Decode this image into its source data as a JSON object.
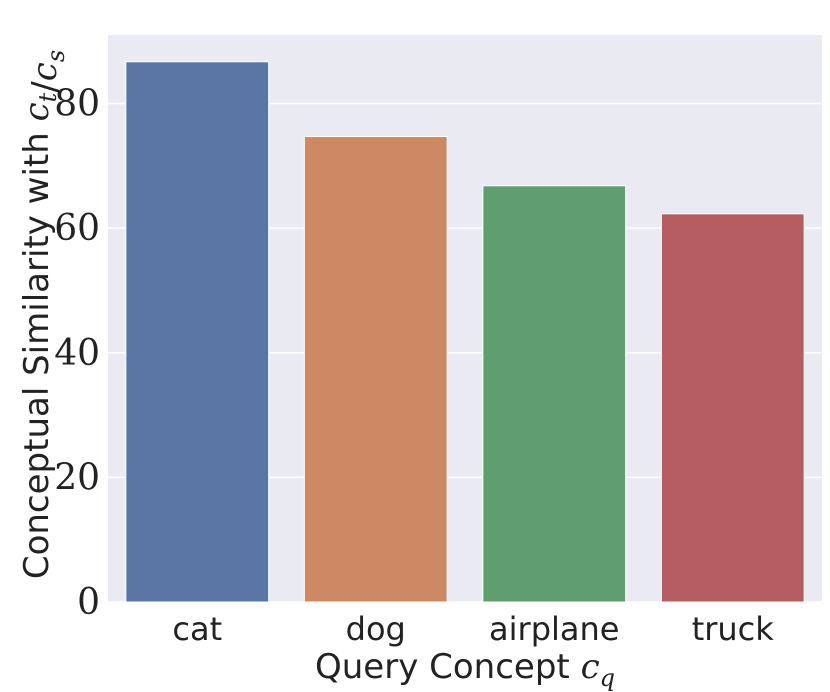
{
  "chart_data": {
    "type": "bar",
    "categories": [
      "cat",
      "dog",
      "airplane",
      "truck"
    ],
    "values": [
      86.7,
      74.7,
      66.8,
      62.3
    ],
    "colors": [
      "#5975a4",
      "#cc8963",
      "#5f9e6e",
      "#b55d60"
    ],
    "ylim": [
      0,
      91
    ],
    "yticks": [
      0,
      20,
      40,
      60,
      80
    ],
    "grid": true,
    "xlabel": [
      "Query Concept ",
      {
        "base": "c",
        "sub": "q"
      }
    ],
    "ylabel": [
      "Conceptual Similarity with ",
      {
        "base": "c",
        "sub": "t"
      },
      "/",
      {
        "base": "c",
        "sub": "s"
      }
    ]
  }
}
